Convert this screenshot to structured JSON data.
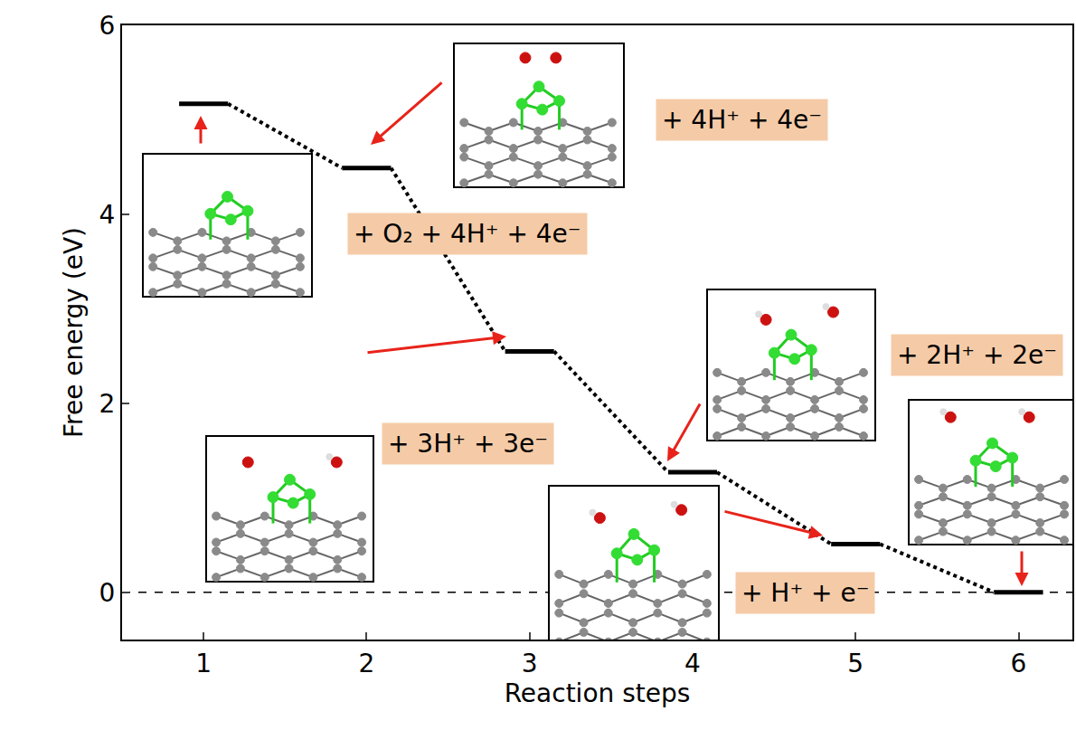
{
  "chart_data": {
    "type": "step",
    "x": [
      1,
      2,
      3,
      4,
      5,
      6
    ],
    "values": [
      5.17,
      4.49,
      2.55,
      1.27,
      0.51,
      0.0
    ],
    "color": "#000000",
    "line_style": "dotted",
    "baseline": 0,
    "xlim": [
      0.5,
      6.33
    ],
    "ylim": [
      -0.5,
      6
    ],
    "xticks": [
      1,
      2,
      3,
      4,
      5,
      6
    ],
    "yticks": [
      0,
      2,
      4,
      6
    ],
    "x_label": "Reaction steps",
    "y_label": "Free energy (eV)",
    "grid": false,
    "annotations": [
      {
        "step": 1,
        "text": "+ O₂ + 4H⁺ + 4e⁻"
      },
      {
        "step": 2,
        "text": "+ 4H⁺ + 4e⁻"
      },
      {
        "step": 3,
        "text": "+ 3H⁺ + 3e⁻"
      },
      {
        "step": 4,
        "text": "+ 2H⁺ + 2e⁻"
      },
      {
        "step": 5,
        "text": "+ H⁺ + e⁻"
      }
    ]
  }
}
